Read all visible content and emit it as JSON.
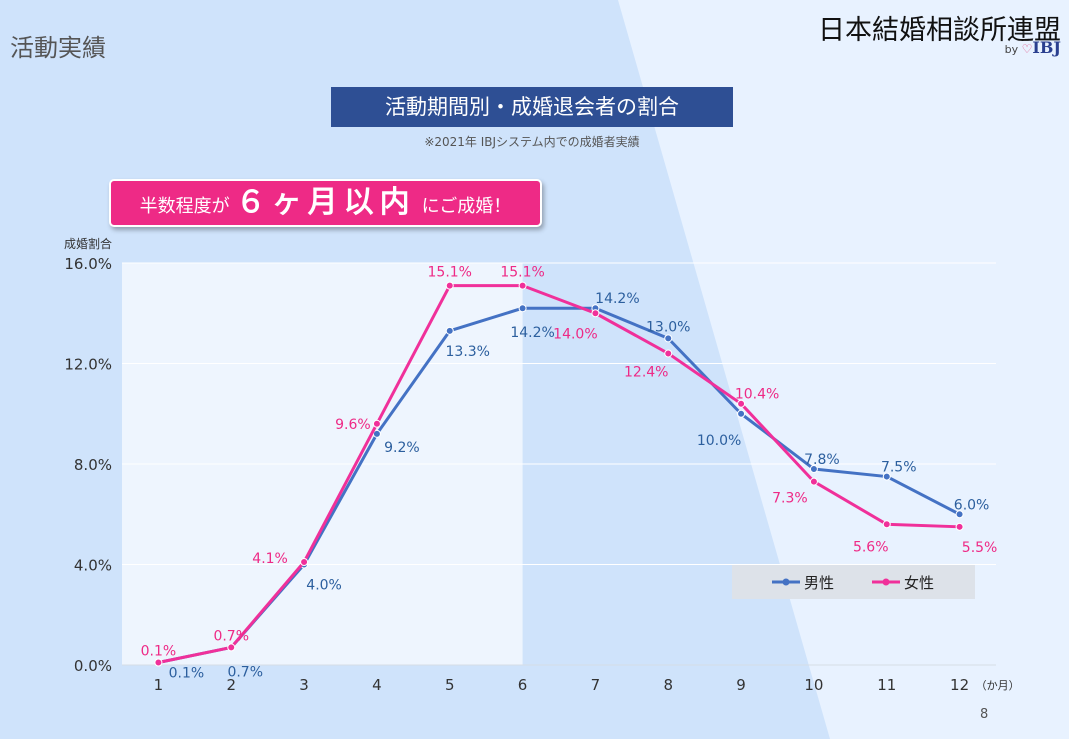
{
  "header": {
    "section_title": "活動実績",
    "brand_name": "日本結婚相談所連盟",
    "brand_by": "by",
    "brand_logo": "IBJ",
    "brand_icon": "heart-icon"
  },
  "banner": {
    "title": "活動期間別・成婚退会者の割合",
    "note": "※2021年 IBJシステム内での成婚者実績"
  },
  "highlight": {
    "prefix": "半数程度が",
    "emphasis": "６ヶ月以内",
    "suffix": "にご成婚！"
  },
  "page_number": "8",
  "colors": {
    "male": "#4472c4",
    "female": "#f0309a",
    "title_bg": "#2e4f94",
    "highlight_bg": "#ee2a86",
    "male_label": "#2c5f9e",
    "female_label": "#ee2a86"
  },
  "chart_data": {
    "type": "line",
    "ylabel": "成婚割合",
    "x_unit": "（か月）",
    "categories": [
      "1",
      "2",
      "3",
      "4",
      "5",
      "6",
      "7",
      "8",
      "9",
      "10",
      "11",
      "12"
    ],
    "ylim": [
      0,
      16
    ],
    "yticks": [
      "0.0%",
      "4.0%",
      "8.0%",
      "12.0%",
      "16.0%"
    ],
    "ytick_values": [
      0,
      4,
      8,
      12,
      16
    ],
    "grid": true,
    "legend": "bottom-right",
    "highlight_range": [
      "1",
      "6"
    ],
    "series": [
      {
        "name": "男性",
        "values": [
          0.1,
          0.7,
          4.0,
          9.2,
          13.3,
          14.2,
          14.2,
          13.0,
          10.0,
          7.8,
          7.5,
          6.0
        ],
        "labels": [
          "0.1%",
          "0.7%",
          "4.0%",
          "9.2%",
          "13.3%",
          "14.2%",
          "14.2%",
          "13.0%",
          "10.0%",
          "7.8%",
          "7.5%",
          "6.0%"
        ]
      },
      {
        "name": "女性",
        "values": [
          0.1,
          0.7,
          4.1,
          9.6,
          15.1,
          15.1,
          14.0,
          12.4,
          10.4,
          7.3,
          5.6,
          5.5
        ],
        "labels": [
          "0.1%",
          "0.7%",
          "4.1%",
          "9.6%",
          "15.1%",
          "15.1%",
          "14.0%",
          "12.4%",
          "10.4%",
          "7.3%",
          "5.6%",
          "5.5%"
        ]
      }
    ]
  }
}
